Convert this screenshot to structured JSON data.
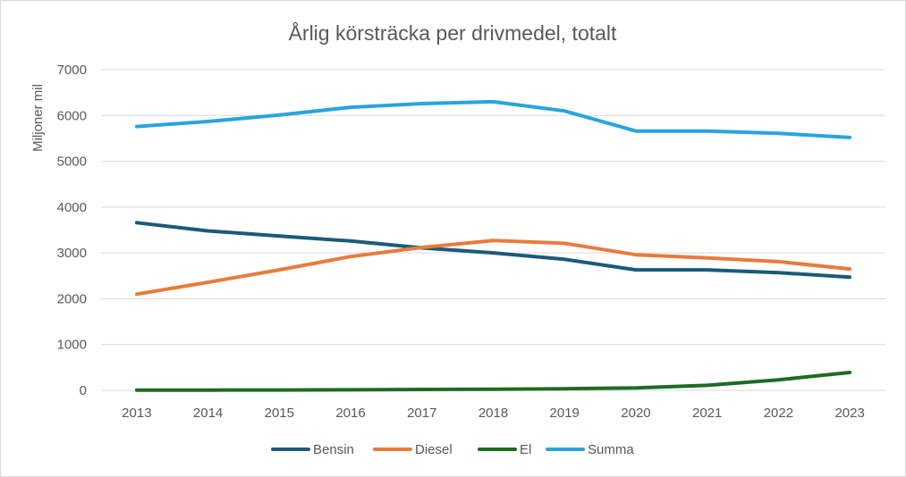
{
  "chart_data": {
    "type": "line",
    "title": "Årlig körsträcka per drivmedel, totalt",
    "ylabel": "Miljoner mil",
    "xlabel": "",
    "ylim": [
      0,
      7000
    ],
    "yticks": [
      0,
      1000,
      2000,
      3000,
      4000,
      5000,
      6000,
      7000
    ],
    "grid": true,
    "legend_position": "bottom",
    "x": [
      "2013",
      "2014",
      "2015",
      "2016",
      "2017",
      "2018",
      "2019",
      "2020",
      "2021",
      "2022",
      "2023"
    ],
    "series": [
      {
        "name": "Bensin",
        "color": "#1b5a7a",
        "values": [
          3660,
          3480,
          3370,
          3260,
          3110,
          3000,
          2860,
          2630,
          2630,
          2570,
          2470
        ]
      },
      {
        "name": "Diesel",
        "color": "#e97b3b",
        "values": [
          2100,
          2360,
          2630,
          2920,
          3120,
          3270,
          3210,
          2960,
          2890,
          2810,
          2650
        ]
      },
      {
        "name": "El",
        "color": "#1e6b24",
        "values": [
          3,
          5,
          8,
          12,
          20,
          25,
          35,
          55,
          110,
          230,
          390
        ]
      },
      {
        "name": "Summa",
        "color": "#2aa4dc",
        "values": [
          5760,
          5870,
          6010,
          6180,
          6260,
          6300,
          6100,
          5660,
          5660,
          5610,
          5520
        ]
      }
    ]
  }
}
